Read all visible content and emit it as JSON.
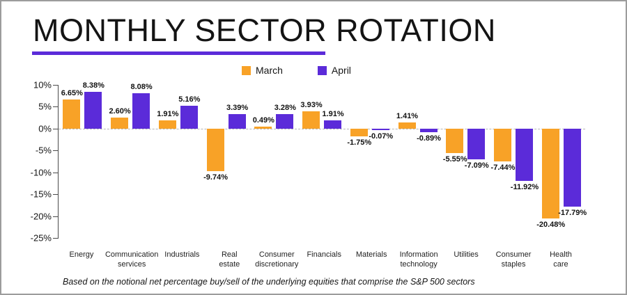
{
  "card": {
    "title": "MONTHLY SECTOR ROTATION",
    "footnote": "Based on the notional net percentage buy/sell of the underlying equities that comprise the S&P 500 sectors"
  },
  "legend": {
    "march": "March",
    "april": "April"
  },
  "colors": {
    "march": "#F8A227",
    "april": "#5B2BD9",
    "underline": "#5B2BD9",
    "axis": "#4a4a4a",
    "zero_line": "#b5b5b5"
  },
  "chart_data": {
    "type": "bar",
    "title": "MONTHLY SECTOR ROTATION",
    "categories": [
      "Energy",
      "Communication services",
      "Industrials",
      "Real estate",
      "Consumer discretionary",
      "Financials",
      "Materials",
      "Information technology",
      "Utilities",
      "Consumer staples",
      "Health care"
    ],
    "category_label_lines": [
      [
        "Energy"
      ],
      [
        "Communication",
        "services"
      ],
      [
        "Industrials"
      ],
      [
        "Real",
        "estate"
      ],
      [
        "Consumer",
        "discretionary"
      ],
      [
        "Financials"
      ],
      [
        "Materials"
      ],
      [
        "Information",
        "technology"
      ],
      [
        "Utilities"
      ],
      [
        "Consumer",
        "staples"
      ],
      [
        "Health",
        "care"
      ]
    ],
    "series": [
      {
        "name": "March",
        "color_key": "march",
        "values": [
          6.65,
          2.6,
          1.91,
          -9.74,
          0.49,
          3.93,
          -1.75,
          1.41,
          -5.55,
          -7.44,
          -20.48
        ]
      },
      {
        "name": "April",
        "color_key": "april",
        "values": [
          8.38,
          8.08,
          5.16,
          3.39,
          3.28,
          1.91,
          -0.07,
          -0.89,
          -7.09,
          -11.92,
          -17.79
        ]
      }
    ],
    "ylabel_ticks": [
      "10%",
      "5%",
      "0%",
      "-5%",
      "-10%",
      "-15%",
      "-20%",
      "-25%"
    ],
    "ytick_values": [
      10,
      5,
      0,
      -5,
      -10,
      -15,
      -20,
      -25
    ],
    "ylim": [
      -25,
      10
    ],
    "value_label_format": "percent_2dp",
    "legend_position": "top-center",
    "grid": "zero-line-dashed",
    "xlabel": "",
    "ylabel": ""
  }
}
